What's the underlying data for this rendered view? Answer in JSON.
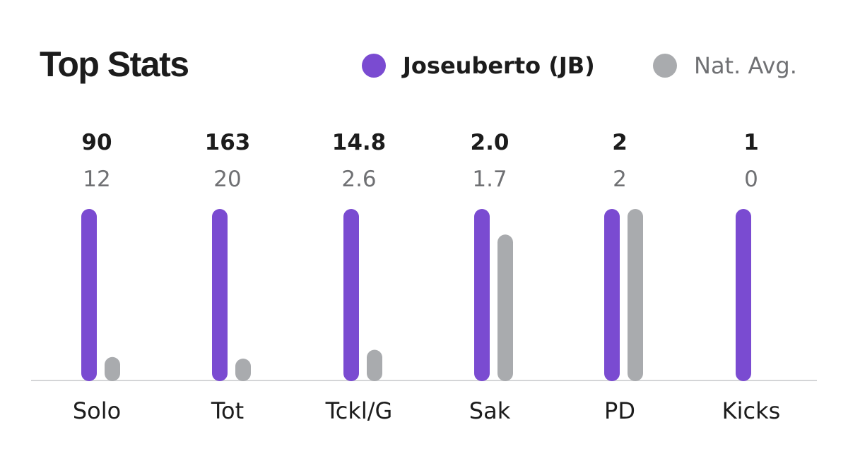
{
  "title": "Top Stats",
  "legend": [
    {
      "label": "Joseuberto (JB)",
      "color": "#7a4bd1"
    },
    {
      "label": "Nat. Avg.",
      "color": "#a9abae"
    }
  ],
  "chart_data": {
    "type": "bar",
    "categories": [
      "Solo",
      "Tot",
      "Tckl/G",
      "Sak",
      "PD",
      "Kicks"
    ],
    "series": [
      {
        "name": "Joseuberto (JB)",
        "color": "#7a4bd1",
        "labels": [
          "90",
          "163",
          "14.8",
          "2.0",
          "2",
          "1"
        ],
        "values": [
          90,
          163,
          14.8,
          2.0,
          2,
          1
        ]
      },
      {
        "name": "Nat. Avg.",
        "color": "#a9abae",
        "labels": [
          "12",
          "20",
          "2.6",
          "1.7",
          "2",
          "0"
        ],
        "values": [
          12,
          20,
          2.6,
          1.7,
          2,
          0
        ]
      }
    ],
    "grid": false,
    "legend_position": "top-right"
  }
}
